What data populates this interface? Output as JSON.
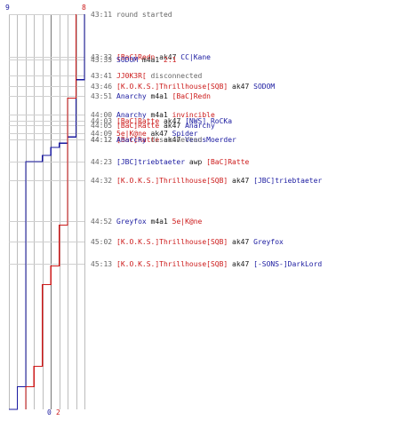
{
  "colors": {
    "blue": "#1a1aa0",
    "red": "#cc1a1a",
    "gray": "#666666",
    "dark": "#1a1a1a"
  },
  "chart_data": {
    "type": "line",
    "description_free": true,
    "team_blue": {
      "start": "9",
      "end": "0"
    },
    "team_red": {
      "start": "8",
      "end": "2"
    },
    "ylim": [
      0,
      9
    ],
    "series": [
      {
        "color": "#1a1aa0",
        "points": [
          [
            0,
            9
          ],
          [
            32,
            8
          ],
          [
            33,
            8
          ],
          [
            41,
            8
          ],
          [
            46,
            8
          ],
          [
            51,
            8
          ],
          [
            60,
            7
          ],
          [
            63,
            6
          ],
          [
            65,
            5
          ],
          [
            69,
            4
          ],
          [
            72,
            3
          ],
          [
            72,
            2
          ],
          [
            103,
            2
          ],
          [
            123,
            2
          ],
          [
            132,
            2
          ],
          [
            172,
            2
          ],
          [
            182,
            1
          ],
          [
            193,
            0
          ]
        ]
      },
      {
        "color": "#cc1a1a",
        "points": [
          [
            0,
            8
          ],
          [
            32,
            8
          ],
          [
            33,
            8
          ],
          [
            41,
            7
          ],
          [
            46,
            7
          ],
          [
            51,
            7
          ],
          [
            60,
            7
          ],
          [
            63,
            7
          ],
          [
            65,
            7
          ],
          [
            69,
            7
          ],
          [
            72,
            7
          ],
          [
            72,
            7
          ],
          [
            103,
            6
          ],
          [
            123,
            5
          ],
          [
            132,
            4
          ],
          [
            172,
            3
          ],
          [
            182,
            2
          ],
          [
            193,
            2
          ]
        ]
      }
    ]
  },
  "events": [
    {
      "time": "43:11",
      "parts": [
        {
          "t": "round started",
          "c": "gray"
        }
      ]
    },
    {
      "time": "43:32",
      "parts": [
        {
          "t": "[BaC]Redn",
          "c": "red"
        },
        {
          "t": " ak47 ",
          "c": "dark"
        },
        {
          "t": "CC|Kane",
          "c": "blue"
        }
      ]
    },
    {
      "time": "43:33",
      "parts": [
        {
          "t": "SODOM",
          "c": "blue"
        },
        {
          "t": " m4a1 ",
          "c": "dark"
        },
        {
          "t": "2:1",
          "c": "red"
        }
      ]
    },
    {
      "time": "43:41",
      "parts": [
        {
          "t": "JJ0K3R[",
          "c": "red"
        },
        {
          "t": " disconnected",
          "c": "gray"
        }
      ]
    },
    {
      "time": "43:46",
      "parts": [
        {
          "t": "[K.O.K.S.]Thrillhouse[SQB]",
          "c": "red"
        },
        {
          "t": " ak47 ",
          "c": "dark"
        },
        {
          "t": "SODOM",
          "c": "blue"
        }
      ]
    },
    {
      "time": "43:51",
      "parts": [
        {
          "t": "Anarchy",
          "c": "blue"
        },
        {
          "t": " m4a1 ",
          "c": "dark"
        },
        {
          "t": "[BaC]Redn",
          "c": "red"
        }
      ]
    },
    {
      "time": "44:00",
      "parts": [
        {
          "t": "Anarchy",
          "c": "blue"
        },
        {
          "t": " m4a1 ",
          "c": "dark"
        },
        {
          "t": "invincible",
          "c": "red"
        }
      ]
    },
    {
      "time": "44:03",
      "parts": [
        {
          "t": "[BaC]Ratte",
          "c": "red"
        },
        {
          "t": " ak47 ",
          "c": "dark"
        },
        {
          "t": "[NWS] RoCKa",
          "c": "blue"
        }
      ]
    },
    {
      "time": "44:05",
      "parts": [
        {
          "t": "[BaC]Ratte",
          "c": "red"
        },
        {
          "t": " ak47 ",
          "c": "dark"
        },
        {
          "t": "Anarchy",
          "c": "blue"
        }
      ]
    },
    {
      "time": "44:09",
      "parts": [
        {
          "t": "5e|K@ne",
          "c": "red"
        },
        {
          "t": " ak47 ",
          "c": "dark"
        },
        {
          "t": "Spider",
          "c": "blue"
        }
      ]
    },
    {
      "time": "44:12",
      "parts": [
        {
          "t": "[BaC]Ratte",
          "c": "red"
        },
        {
          "t": " ak47 ",
          "c": "dark"
        },
        {
          "t": "VenusMoerder",
          "c": "blue"
        }
      ]
    },
    {
      "time": "44:12",
      "parts": [
        {
          "t": "Anarchy",
          "c": "blue"
        },
        {
          "t": " disconnected",
          "c": "gray"
        }
      ]
    },
    {
      "time": "44:23",
      "parts": [
        {
          "t": "[JBC]triebtaeter",
          "c": "blue"
        },
        {
          "t": " awp ",
          "c": "dark"
        },
        {
          "t": "[BaC]Ratte",
          "c": "red"
        }
      ]
    },
    {
      "time": "44:32",
      "parts": [
        {
          "t": "[K.O.K.S.]Thrillhouse[SQB]",
          "c": "red"
        },
        {
          "t": " ak47 ",
          "c": "dark"
        },
        {
          "t": "[JBC]triebtaeter",
          "c": "blue"
        }
      ]
    },
    {
      "time": "44:52",
      "parts": [
        {
          "t": "Greyfox",
          "c": "blue"
        },
        {
          "t": " m4a1 ",
          "c": "dark"
        },
        {
          "t": "5e|K@ne",
          "c": "red"
        }
      ]
    },
    {
      "time": "45:02",
      "parts": [
        {
          "t": "[K.O.K.S.]Thrillhouse[SQB]",
          "c": "red"
        },
        {
          "t": " ak47 ",
          "c": "dark"
        },
        {
          "t": "Greyfox",
          "c": "blue"
        }
      ]
    },
    {
      "time": "45:13",
      "parts": [
        {
          "t": "[K.O.K.S.]Thrillhouse[SQB]",
          "c": "red"
        },
        {
          "t": " ak47 ",
          "c": "dark"
        },
        {
          "t": "[-SONS-]DarkLord",
          "c": "blue"
        }
      ]
    }
  ]
}
